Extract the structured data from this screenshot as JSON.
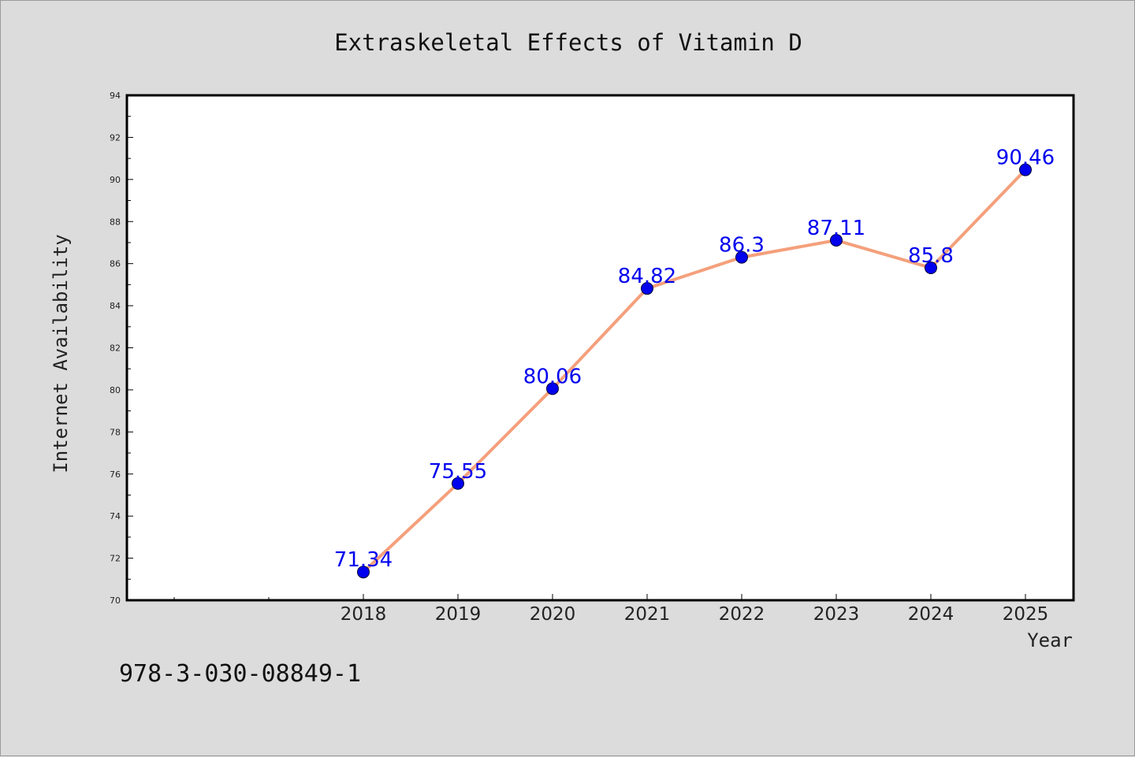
{
  "chart_data": {
    "type": "line",
    "title": "Extraskeletal Effects of Vitamin D",
    "xlabel": "Year",
    "ylabel": "Internet Availability",
    "categories": [
      "2018",
      "2019",
      "2020",
      "2021",
      "2022",
      "2023",
      "2024",
      "2025"
    ],
    "series": [
      {
        "values": [
          71.34,
          75.55,
          80.06,
          84.82,
          86.3,
          87.11,
          85.8,
          90.46
        ],
        "data_labels": [
          "71.34",
          "75.55",
          "80.06",
          "84.82",
          "86.3",
          "87.11",
          "85.8",
          "90.46"
        ],
        "line_color": "#f4a07c",
        "marker_color": "#0000ee"
      }
    ],
    "ylim": [
      70,
      94
    ],
    "yticks": [
      "70",
      "72",
      "74",
      "76",
      "78",
      "80",
      "82",
      "84",
      "86",
      "88",
      "90",
      "92",
      "94"
    ],
    "grid": false,
    "legend": "none",
    "label_color": "#0000ee",
    "plot_background": "#ffffff"
  },
  "footer": {
    "isbn": "978-3-030-08849-1"
  }
}
